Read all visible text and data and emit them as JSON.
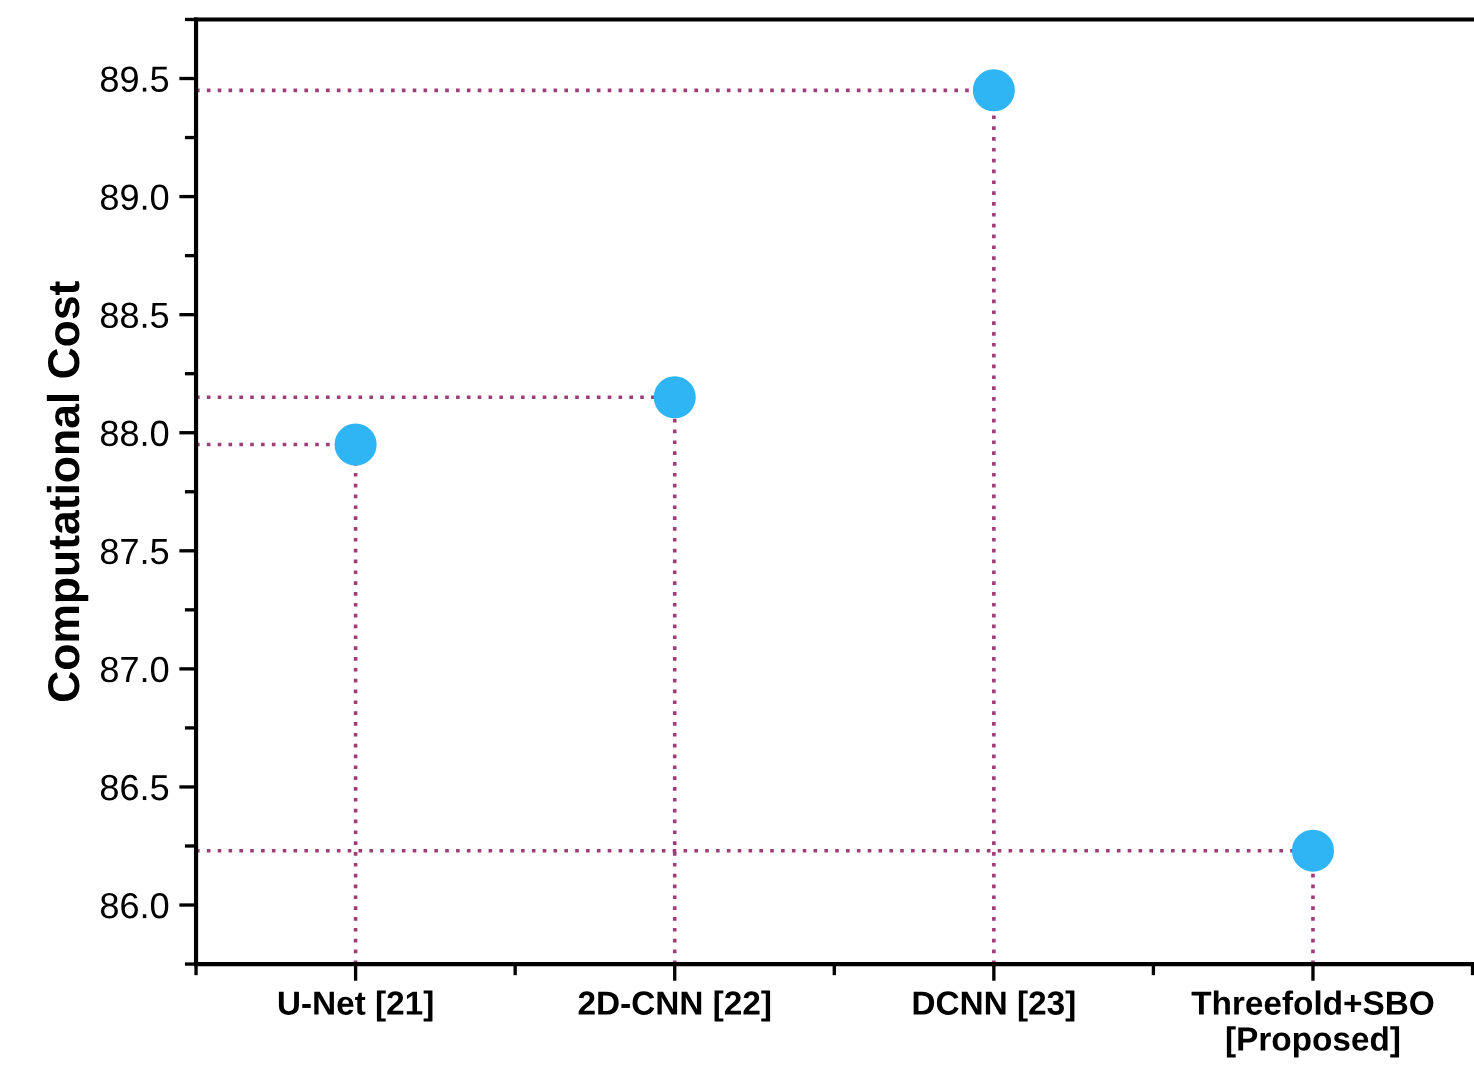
{
  "chart_data": {
    "type": "lollipop",
    "line_style": "dotted",
    "ylabel": "Computational Cost",
    "categories": [
      "U-Net [21]",
      "2D-CNN [22]",
      "DCNN [23]",
      "Threefold+SBO\n[Proposed]"
    ],
    "series": [
      {
        "color": "#2fb4f4",
        "values": [
          87.95,
          88.15,
          89.45,
          86.23
        ]
      }
    ],
    "ylim": [
      85.75,
      89.75
    ],
    "yticks": [
      {
        "value": 86.0,
        "label": "86.0"
      },
      {
        "value": 86.5,
        "label": "86.5"
      },
      {
        "value": 87.0,
        "label": "87.0"
      },
      {
        "value": 87.5,
        "label": "87.5"
      },
      {
        "value": 88.0,
        "label": "88.0"
      },
      {
        "value": 88.5,
        "label": "88.5"
      },
      {
        "value": 89.0,
        "label": "89.0"
      },
      {
        "value": 89.5,
        "label": "89.5"
      }
    ],
    "ref_lines": [
      {
        "axis": "y",
        "value": 87.95,
        "color": "#a03c78",
        "line_style": "dotted"
      },
      {
        "axis": "y",
        "value": 88.15,
        "color": "#a03c78",
        "line_style": "dotted"
      },
      {
        "axis": "y",
        "value": 89.45,
        "color": "#a03c78",
        "line_style": "dotted"
      },
      {
        "axis": "y",
        "value": 86.23,
        "color": "#a03c78",
        "line_style": "dotted"
      }
    ],
    "marker": "circle",
    "grid": false,
    "legend": false
  }
}
